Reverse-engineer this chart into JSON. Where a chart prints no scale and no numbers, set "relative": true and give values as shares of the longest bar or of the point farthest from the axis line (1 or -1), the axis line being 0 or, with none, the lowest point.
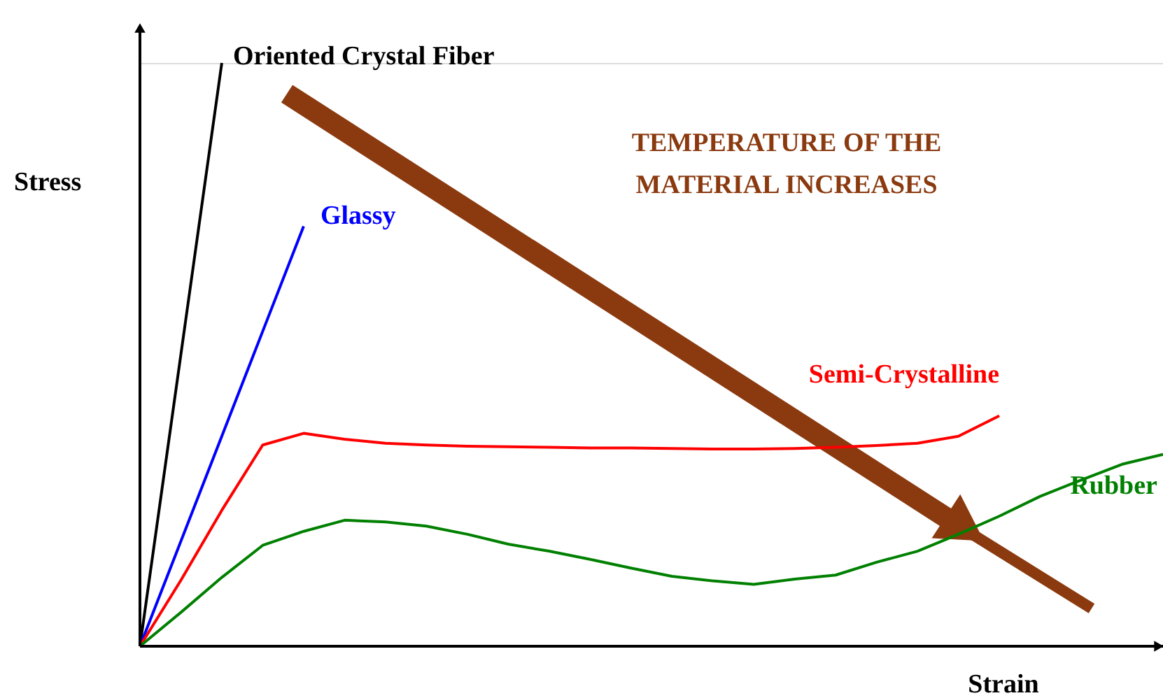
{
  "chart_data": {
    "type": "line",
    "relative": true,
    "xlabel": "Strain",
    "ylabel": "Stress",
    "marker": "none",
    "line_style": "solid",
    "annotations": [
      "TEMPERATURE OF THE MATERIAL INCREASES"
    ],
    "categories": [
      null,
      null,
      null,
      null,
      null,
      null,
      null,
      null,
      null,
      null,
      null,
      null,
      null,
      null,
      null,
      null,
      null,
      null,
      null,
      null,
      null,
      null,
      null,
      null,
      null,
      null
    ],
    "series": [
      {
        "name": "Oriented Crystal Fiber",
        "color": "#000000",
        "values": [
          0,
          0.5,
          1,
          null,
          null,
          null,
          null,
          null,
          null,
          null,
          null,
          null,
          null,
          null,
          null,
          null,
          null,
          null,
          null,
          null,
          null,
          null,
          null,
          null,
          null,
          null
        ]
      },
      {
        "name": "Glassy",
        "color": "#0000ff",
        "values": [
          0,
          0.18,
          0.36,
          0.54,
          0.72,
          null,
          null,
          null,
          null,
          null,
          null,
          null,
          null,
          null,
          null,
          null,
          null,
          null,
          null,
          null,
          null,
          null,
          null,
          null,
          null,
          null
        ]
      },
      {
        "name": "Semi-Crystalline",
        "color": "#ff0000",
        "values": [
          0,
          0.113,
          0.233,
          0.345,
          0.365,
          0.355,
          0.348,
          0.345,
          0.343,
          0.342,
          0.341,
          0.34,
          0.34,
          0.339,
          0.338,
          0.338,
          0.339,
          0.341,
          0.344,
          0.348,
          0.36,
          0.395,
          null,
          null,
          null,
          null
        ]
      },
      {
        "name": "Rubber",
        "color": "#008000",
        "values": [
          0,
          0.058,
          0.118,
          0.173,
          0.197,
          0.216,
          0.213,
          0.206,
          0.192,
          0.175,
          0.163,
          0.149,
          0.134,
          0.12,
          0.112,
          0.106,
          0.115,
          0.122,
          0.144,
          0.163,
          0.192,
          0.223,
          0.257,
          0.285,
          0.312,
          0.329
        ]
      }
    ]
  }
}
